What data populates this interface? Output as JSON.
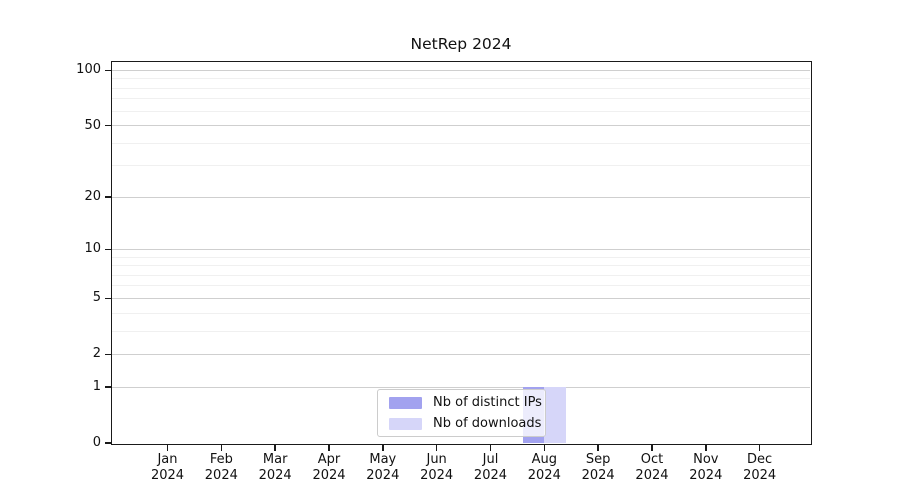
{
  "chart_data": {
    "type": "bar",
    "title": "NetRep 2024",
    "categories": [
      "Jan",
      "Feb",
      "Mar",
      "Apr",
      "May",
      "Jun",
      "Jul",
      "Aug",
      "Sep",
      "Oct",
      "Nov",
      "Dec"
    ],
    "year_label": "2024",
    "series": [
      {
        "name": "Nb of distinct IPs",
        "color": "#a2a2ef",
        "values": [
          0,
          0,
          0,
          0,
          0,
          0,
          0,
          1,
          0,
          0,
          0,
          0
        ]
      },
      {
        "name": "Nb of downloads",
        "color": "#d6d6f9",
        "values": [
          0,
          0,
          0,
          0,
          0,
          0,
          0,
          1,
          0,
          0,
          0,
          0
        ]
      }
    ],
    "y_scale": "log1p",
    "y_major_ticks": [
      0,
      1,
      2,
      5,
      10,
      20,
      50,
      100
    ],
    "y_minor_ticks": [
      3,
      4,
      6,
      7,
      8,
      9,
      30,
      40,
      60,
      70,
      80,
      90
    ],
    "ylim": [
      0,
      111
    ],
    "grid": true,
    "legend_position": "lower center",
    "frame_color": "#1a1a1a",
    "grid_major_color": "#cfcfcf",
    "grid_minor_color": "#f0f0f0"
  }
}
